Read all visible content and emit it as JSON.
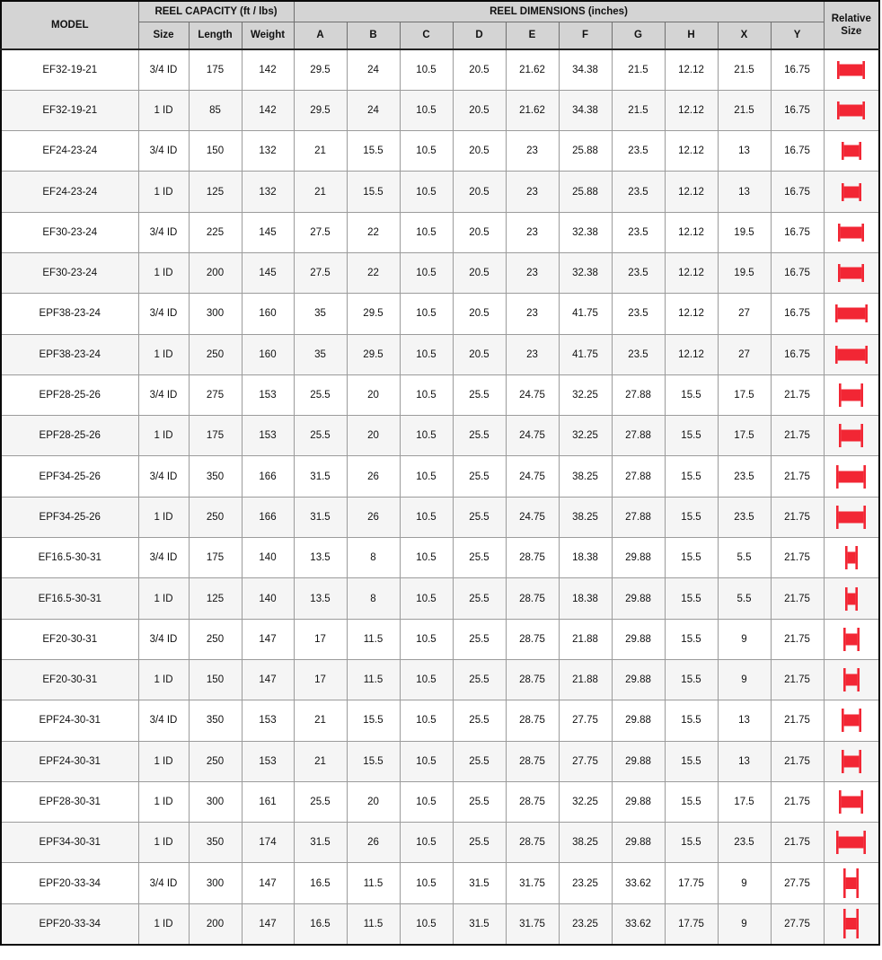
{
  "colors": {
    "accent_red": "#f22634",
    "header_bg": "#d4d4d4",
    "row_alt_bg": "#f5f5f5",
    "grid_line": "#9b9b9b"
  },
  "table": {
    "header": {
      "model": "MODEL",
      "capacity_group": "REEL CAPACITY (ft / lbs)",
      "dimensions_group": "REEL DIMENSIONS (inches)",
      "relative_size": "Relative Size",
      "capacity_cols": [
        "Size",
        "Length",
        "Weight"
      ],
      "dimension_cols": [
        "A",
        "B",
        "C",
        "D",
        "E",
        "F",
        "G",
        "H",
        "X",
        "Y"
      ]
    },
    "icon_name": "reel-side-view-icon",
    "rows": [
      {
        "model": "EF32-19-21",
        "size": "3/4 ID",
        "length": "175",
        "weight": "142",
        "dims": [
          "29.5",
          "24",
          "10.5",
          "20.5",
          "21.62",
          "34.38",
          "21.5",
          "12.12",
          "21.5",
          "16.75"
        ]
      },
      {
        "model": "EF32-19-21",
        "size": "1 ID",
        "length": "85",
        "weight": "142",
        "dims": [
          "29.5",
          "24",
          "10.5",
          "20.5",
          "21.62",
          "34.38",
          "21.5",
          "12.12",
          "21.5",
          "16.75"
        ]
      },
      {
        "model": "EF24-23-24",
        "size": "3/4 ID",
        "length": "150",
        "weight": "132",
        "dims": [
          "21",
          "15.5",
          "10.5",
          "20.5",
          "23",
          "25.88",
          "23.5",
          "12.12",
          "13",
          "16.75"
        ]
      },
      {
        "model": "EF24-23-24",
        "size": "1 ID",
        "length": "125",
        "weight": "132",
        "dims": [
          "21",
          "15.5",
          "10.5",
          "20.5",
          "23",
          "25.88",
          "23.5",
          "12.12",
          "13",
          "16.75"
        ]
      },
      {
        "model": "EF30-23-24",
        "size": "3/4 ID",
        "length": "225",
        "weight": "145",
        "dims": [
          "27.5",
          "22",
          "10.5",
          "20.5",
          "23",
          "32.38",
          "23.5",
          "12.12",
          "19.5",
          "16.75"
        ]
      },
      {
        "model": "EF30-23-24",
        "size": "1 ID",
        "length": "200",
        "weight": "145",
        "dims": [
          "27.5",
          "22",
          "10.5",
          "20.5",
          "23",
          "32.38",
          "23.5",
          "12.12",
          "19.5",
          "16.75"
        ]
      },
      {
        "model": "EPF38-23-24",
        "size": "3/4 ID",
        "length": "300",
        "weight": "160",
        "dims": [
          "35",
          "29.5",
          "10.5",
          "20.5",
          "23",
          "41.75",
          "23.5",
          "12.12",
          "27",
          "16.75"
        ]
      },
      {
        "model": "EPF38-23-24",
        "size": "1 ID",
        "length": "250",
        "weight": "160",
        "dims": [
          "35",
          "29.5",
          "10.5",
          "20.5",
          "23",
          "41.75",
          "23.5",
          "12.12",
          "27",
          "16.75"
        ]
      },
      {
        "model": "EPF28-25-26",
        "size": "3/4 ID",
        "length": "275",
        "weight": "153",
        "dims": [
          "25.5",
          "20",
          "10.5",
          "25.5",
          "24.75",
          "32.25",
          "27.88",
          "15.5",
          "17.5",
          "21.75"
        ]
      },
      {
        "model": "EPF28-25-26",
        "size": "1 ID",
        "length": "175",
        "weight": "153",
        "dims": [
          "25.5",
          "20",
          "10.5",
          "25.5",
          "24.75",
          "32.25",
          "27.88",
          "15.5",
          "17.5",
          "21.75"
        ]
      },
      {
        "model": "EPF34-25-26",
        "size": "3/4 ID",
        "length": "350",
        "weight": "166",
        "dims": [
          "31.5",
          "26",
          "10.5",
          "25.5",
          "24.75",
          "38.25",
          "27.88",
          "15.5",
          "23.5",
          "21.75"
        ]
      },
      {
        "model": "EPF34-25-26",
        "size": "1 ID",
        "length": "250",
        "weight": "166",
        "dims": [
          "31.5",
          "26",
          "10.5",
          "25.5",
          "24.75",
          "38.25",
          "27.88",
          "15.5",
          "23.5",
          "21.75"
        ]
      },
      {
        "model": "EF16.5-30-31",
        "size": "3/4 ID",
        "length": "175",
        "weight": "140",
        "dims": [
          "13.5",
          "8",
          "10.5",
          "25.5",
          "28.75",
          "18.38",
          "29.88",
          "15.5",
          "5.5",
          "21.75"
        ]
      },
      {
        "model": "EF16.5-30-31",
        "size": "1 ID",
        "length": "125",
        "weight": "140",
        "dims": [
          "13.5",
          "8",
          "10.5",
          "25.5",
          "28.75",
          "18.38",
          "29.88",
          "15.5",
          "5.5",
          "21.75"
        ]
      },
      {
        "model": "EF20-30-31",
        "size": "3/4 ID",
        "length": "250",
        "weight": "147",
        "dims": [
          "17",
          "11.5",
          "10.5",
          "25.5",
          "28.75",
          "21.88",
          "29.88",
          "15.5",
          "9",
          "21.75"
        ]
      },
      {
        "model": "EF20-30-31",
        "size": "1 ID",
        "length": "150",
        "weight": "147",
        "dims": [
          "17",
          "11.5",
          "10.5",
          "25.5",
          "28.75",
          "21.88",
          "29.88",
          "15.5",
          "9",
          "21.75"
        ]
      },
      {
        "model": "EPF24-30-31",
        "size": "3/4 ID",
        "length": "350",
        "weight": "153",
        "dims": [
          "21",
          "15.5",
          "10.5",
          "25.5",
          "28.75",
          "27.75",
          "29.88",
          "15.5",
          "13",
          "21.75"
        ]
      },
      {
        "model": "EPF24-30-31",
        "size": "1 ID",
        "length": "250",
        "weight": "153",
        "dims": [
          "21",
          "15.5",
          "10.5",
          "25.5",
          "28.75",
          "27.75",
          "29.88",
          "15.5",
          "13",
          "21.75"
        ]
      },
      {
        "model": "EPF28-30-31",
        "size": "1 ID",
        "length": "300",
        "weight": "161",
        "dims": [
          "25.5",
          "20",
          "10.5",
          "25.5",
          "28.75",
          "32.25",
          "29.88",
          "15.5",
          "17.5",
          "21.75"
        ]
      },
      {
        "model": "EPF34-30-31",
        "size": "1 ID",
        "length": "350",
        "weight": "174",
        "dims": [
          "31.5",
          "26",
          "10.5",
          "25.5",
          "28.75",
          "38.25",
          "29.88",
          "15.5",
          "23.5",
          "21.75"
        ]
      },
      {
        "model": "EPF20-33-34",
        "size": "3/4 ID",
        "length": "300",
        "weight": "147",
        "dims": [
          "16.5",
          "11.5",
          "10.5",
          "31.5",
          "31.75",
          "23.25",
          "33.62",
          "17.75",
          "9",
          "27.75"
        ]
      },
      {
        "model": "EPF20-33-34",
        "size": "1 ID",
        "length": "200",
        "weight": "147",
        "dims": [
          "16.5",
          "11.5",
          "10.5",
          "31.5",
          "31.75",
          "23.25",
          "33.62",
          "17.75",
          "9",
          "27.75"
        ]
      }
    ]
  }
}
